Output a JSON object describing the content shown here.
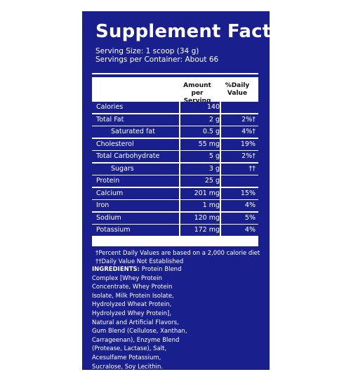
{
  "panel": {
    "title": "Supplement Facts",
    "serving_size": "Serving Size: 1 scoop (34 g)",
    "servings_per_container": "Servings per Container: About 66",
    "header_amount": "Amount per Serving",
    "header_dv": "%Daily Value"
  },
  "rows": [
    {
      "label": "Calories",
      "amount": "140",
      "dv": "",
      "indent": false
    },
    {
      "label": "Total Fat",
      "amount": "2 g",
      "dv": "2%†",
      "indent": false
    },
    {
      "label": "Saturated fat",
      "amount": "0.5 g",
      "dv": "4%†",
      "indent": true
    },
    {
      "label": "Cholesterol",
      "amount": "55 mg",
      "dv": "19%",
      "indent": false
    },
    {
      "label": "Total Carbohydrate",
      "amount": "5 g",
      "dv": "2%†",
      "indent": false
    },
    {
      "label": "Sugars",
      "amount": "3 g",
      "dv": "††",
      "indent": true
    },
    {
      "label": "Protein",
      "amount": "25 g",
      "dv": "",
      "indent": false
    },
    {
      "label": "Calcium",
      "amount": "201 mg",
      "dv": "15%",
      "indent": false
    },
    {
      "label": "Iron",
      "amount": "1 mg",
      "dv": "4%",
      "indent": false
    },
    {
      "label": "Sodium",
      "amount": "120 mg",
      "dv": "5%",
      "indent": false
    },
    {
      "label": "Potassium",
      "amount": "172 mg",
      "dv": "4%",
      "indent": false
    }
  ],
  "footnotes": {
    "line1": "†Percent Daily Values are based on a 2,000 calorie diet",
    "line2": "††Daily Value Not Established"
  },
  "ingredients": {
    "heading": "INGREDIENTS:",
    "lines": [
      " Protein Blend",
      "Complex [Whey Protein",
      "Concentrate, Whey Protein",
      "Isolate, Milk Protein Isolate,",
      "Hydrolyzed Wheat Protein,",
      "Hydrolyzed Whey Protein],",
      "Natural and Artificial Flavors,",
      "Gum Blend (Cellulose, Xanthan,",
      "Carrageenan), Enzyme Blend",
      "(Protease, Lactase), Salt,",
      "Acesulfame Potassium,",
      "Sucralose, Soy Lecithin."
    ]
  },
  "colors": {
    "panel_bg": "#1a1f8e",
    "text": "#ffffff"
  }
}
